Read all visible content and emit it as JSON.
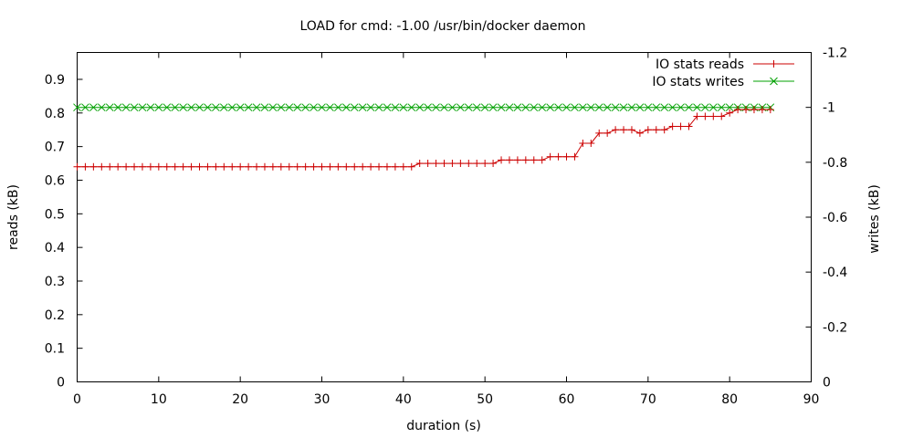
{
  "chart_data": {
    "type": "line",
    "title": "LOAD for cmd: -1.00 /usr/bin/docker daemon",
    "xlabel": "duration (s)",
    "ylabel": "reads (kB)",
    "y2label": "writes (kB)",
    "xlim": [
      0,
      90
    ],
    "ylim": [
      0,
      0.98
    ],
    "y2lim": [
      0,
      -1.2
    ],
    "xticks": [
      "0",
      "10",
      "20",
      "30",
      "40",
      "50",
      "60",
      "70",
      "80",
      "90"
    ],
    "yticks": [
      "0",
      "0.1",
      "0.2",
      "0.3",
      "0.4",
      "0.5",
      "0.6",
      "0.7",
      "0.8",
      "0.9"
    ],
    "y2ticks": [
      "0",
      "-0.2",
      "-0.4",
      "-0.6",
      "-0.8",
      "-1",
      "-1.2"
    ],
    "grid": false,
    "legend_position": "top-right",
    "series": [
      {
        "name": "IO stats reads",
        "axis": "y",
        "color": "#cc0000",
        "marker": "plus",
        "x": [
          0,
          1,
          2,
          3,
          4,
          5,
          6,
          7,
          8,
          9,
          10,
          11,
          12,
          13,
          14,
          15,
          16,
          17,
          18,
          19,
          20,
          21,
          22,
          23,
          24,
          25,
          26,
          27,
          28,
          29,
          30,
          31,
          32,
          33,
          34,
          35,
          36,
          37,
          38,
          39,
          40,
          41,
          42,
          43,
          44,
          45,
          46,
          47,
          48,
          49,
          50,
          51,
          52,
          53,
          54,
          55,
          56,
          57,
          58,
          59,
          60,
          61,
          62,
          63,
          64,
          65,
          66,
          67,
          68,
          69,
          70,
          71,
          72,
          73,
          74,
          75,
          76,
          77,
          78,
          79,
          80,
          81,
          82,
          83,
          84,
          85
        ],
        "values": [
          0.64,
          0.64,
          0.64,
          0.64,
          0.64,
          0.64,
          0.64,
          0.64,
          0.64,
          0.64,
          0.64,
          0.64,
          0.64,
          0.64,
          0.64,
          0.64,
          0.64,
          0.64,
          0.64,
          0.64,
          0.64,
          0.64,
          0.64,
          0.64,
          0.64,
          0.64,
          0.64,
          0.64,
          0.64,
          0.64,
          0.64,
          0.64,
          0.64,
          0.64,
          0.64,
          0.64,
          0.64,
          0.64,
          0.64,
          0.64,
          0.64,
          0.64,
          0.65,
          0.65,
          0.65,
          0.65,
          0.65,
          0.65,
          0.65,
          0.65,
          0.65,
          0.65,
          0.66,
          0.66,
          0.66,
          0.66,
          0.66,
          0.66,
          0.67,
          0.67,
          0.67,
          0.67,
          0.71,
          0.71,
          0.74,
          0.74,
          0.75,
          0.75,
          0.75,
          0.74,
          0.75,
          0.75,
          0.75,
          0.76,
          0.76,
          0.76,
          0.79,
          0.79,
          0.79,
          0.79,
          0.8,
          0.81,
          0.81,
          0.81,
          0.81,
          0.81
        ]
      },
      {
        "name": "IO stats writes",
        "axis": "y2",
        "color": "#00a000",
        "marker": "cross",
        "x": [
          0,
          1,
          2,
          3,
          4,
          5,
          6,
          7,
          8,
          9,
          10,
          11,
          12,
          13,
          14,
          15,
          16,
          17,
          18,
          19,
          20,
          21,
          22,
          23,
          24,
          25,
          26,
          27,
          28,
          29,
          30,
          31,
          32,
          33,
          34,
          35,
          36,
          37,
          38,
          39,
          40,
          41,
          42,
          43,
          44,
          45,
          46,
          47,
          48,
          49,
          50,
          51,
          52,
          53,
          54,
          55,
          56,
          57,
          58,
          59,
          60,
          61,
          62,
          63,
          64,
          65,
          66,
          67,
          68,
          69,
          70,
          71,
          72,
          73,
          74,
          75,
          76,
          77,
          78,
          79,
          80,
          81,
          82,
          83,
          84,
          85
        ],
        "values": [
          -1,
          -1,
          -1,
          -1,
          -1,
          -1,
          -1,
          -1,
          -1,
          -1,
          -1,
          -1,
          -1,
          -1,
          -1,
          -1,
          -1,
          -1,
          -1,
          -1,
          -1,
          -1,
          -1,
          -1,
          -1,
          -1,
          -1,
          -1,
          -1,
          -1,
          -1,
          -1,
          -1,
          -1,
          -1,
          -1,
          -1,
          -1,
          -1,
          -1,
          -1,
          -1,
          -1,
          -1,
          -1,
          -1,
          -1,
          -1,
          -1,
          -1,
          -1,
          -1,
          -1,
          -1,
          -1,
          -1,
          -1,
          -1,
          -1,
          -1,
          -1,
          -1,
          -1,
          -1,
          -1,
          -1,
          -1,
          -1,
          -1,
          -1,
          -1,
          -1,
          -1,
          -1,
          -1,
          -1,
          -1,
          -1,
          -1,
          -1,
          -1,
          -1,
          -1,
          -1,
          -1,
          -1
        ]
      }
    ]
  }
}
